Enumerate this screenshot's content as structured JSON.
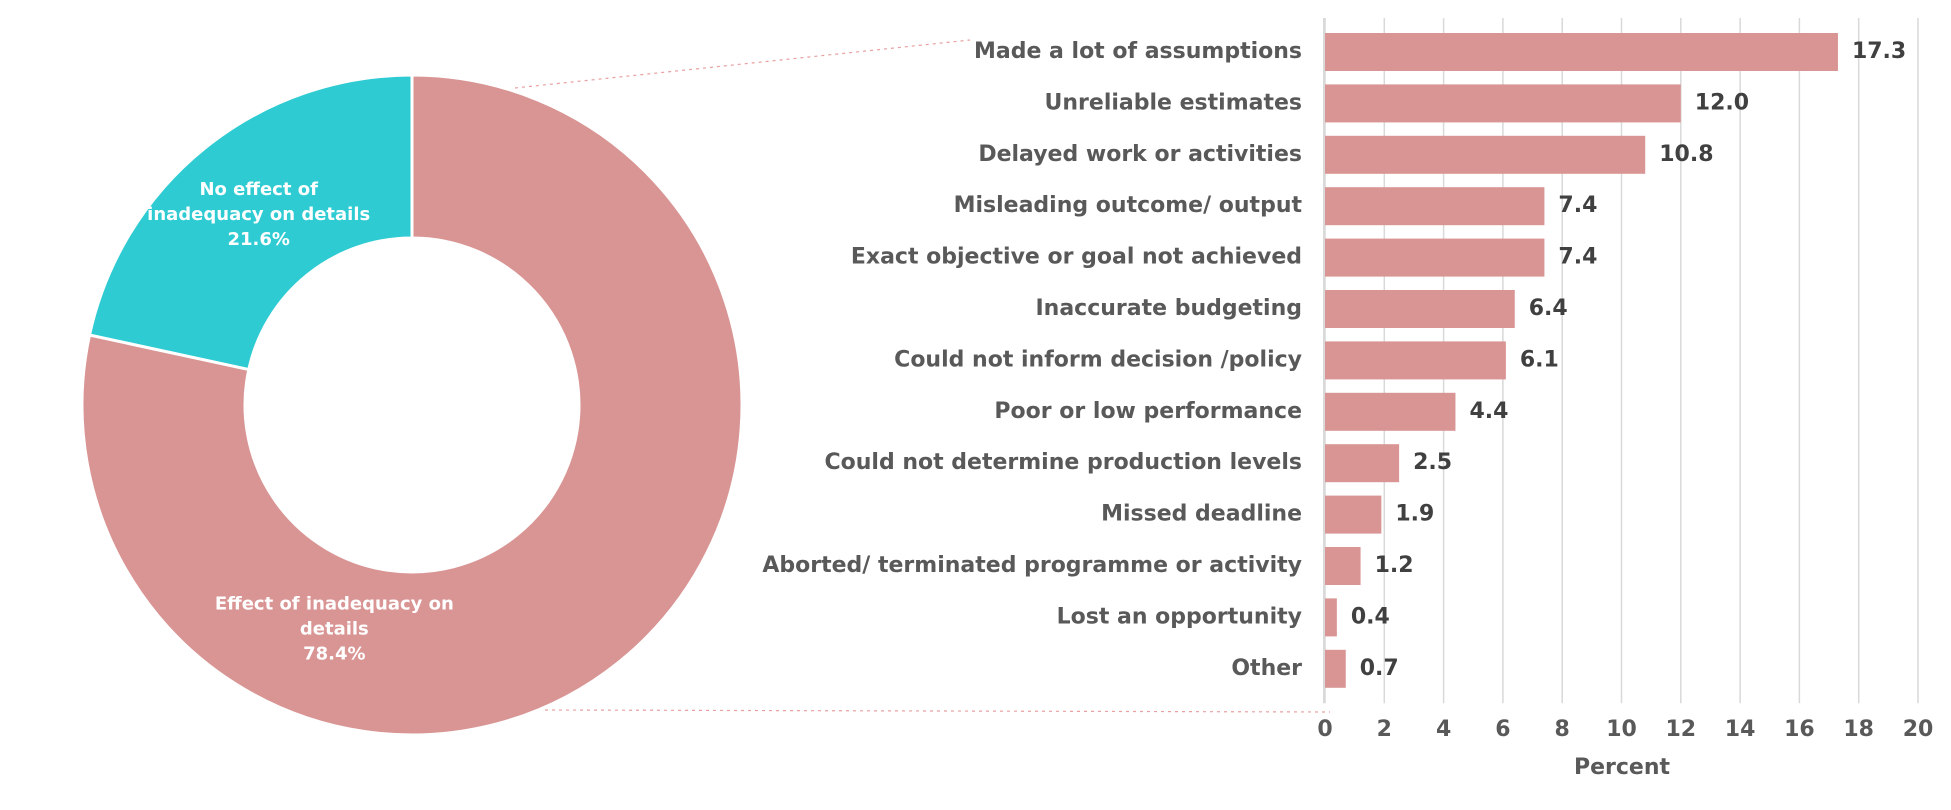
{
  "chart_data": [
    {
      "type": "pie",
      "donut": true,
      "slices": [
        {
          "label_lines": [
            "No effect of",
            "inadequacy on details"
          ],
          "value": 21.6,
          "value_label": "21.6%",
          "color": "#2ECBD3"
        },
        {
          "label_lines": [
            "Effect of inadequacy on",
            "details"
          ],
          "value": 78.4,
          "value_label": "78.4%",
          "color": "#D99594"
        }
      ]
    },
    {
      "type": "bar",
      "orientation": "horizontal",
      "categories": [
        "Made a lot of assumptions",
        "Unreliable estimates",
        "Delayed work or activities",
        "Misleading outcome/ output",
        "Exact objective or goal not achieved",
        "Inaccurate budgeting",
        "Could not inform decision /policy",
        "Poor or low performance",
        "Could not determine production levels",
        "Missed deadline",
        "Aborted/ terminated programme or activity",
        "Lost an opportunity",
        "Other"
      ],
      "values": [
        17.3,
        12.0,
        10.8,
        7.4,
        7.4,
        6.4,
        6.1,
        4.4,
        2.5,
        1.9,
        1.2,
        0.4,
        0.7
      ],
      "value_labels": [
        "17.3",
        "12.0",
        "10.8",
        "7.4",
        "7.4",
        "6.4",
        "6.1",
        "4.4",
        "2.5",
        "1.9",
        "1.2",
        "0.4",
        "0.7"
      ],
      "xlabel": "Percent",
      "xlim": [
        0,
        20
      ],
      "xticks": [
        0,
        2,
        4,
        6,
        8,
        10,
        12,
        14,
        16,
        18,
        20
      ],
      "grid": "vertical",
      "bar_color": "#D99594",
      "grid_color": "#D9D9D9"
    }
  ],
  "colors": {
    "connector": "#E8A0A0",
    "text": "#595959"
  }
}
